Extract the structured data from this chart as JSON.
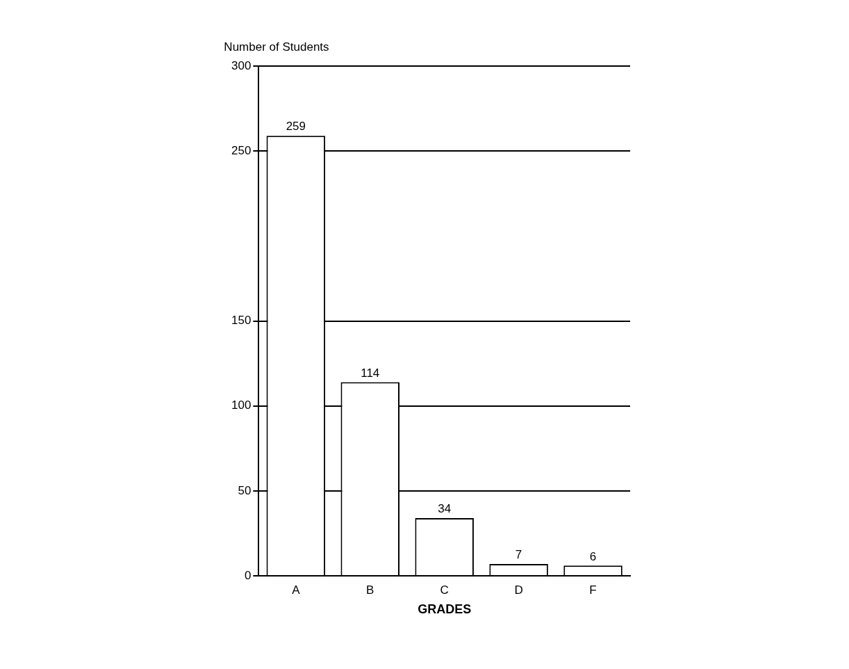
{
  "chart_data": {
    "type": "bar",
    "ylabel": "Number of Students",
    "xlabel": "GRADES",
    "categories": [
      "A",
      "B",
      "C",
      "D",
      "F"
    ],
    "values": [
      259,
      114,
      34,
      7,
      6
    ],
    "color": "#ffffff",
    "ylim": [
      0,
      300
    ],
    "yticks": [
      0,
      50,
      100,
      150,
      250,
      300
    ],
    "grid": "y",
    "data_labels": true,
    "legend": false
  }
}
